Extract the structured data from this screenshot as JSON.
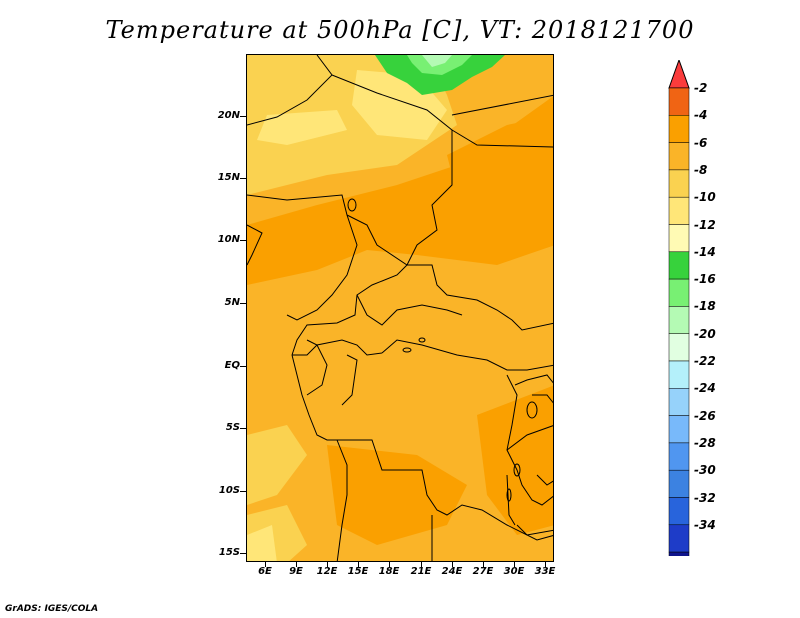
{
  "title": "Temperature at 500hPa [C], VT: 2018121700",
  "credit": "GrADS: IGES/COLA",
  "lat_labels": [
    "20N",
    "15N",
    "10N",
    "5N",
    "EQ",
    "5S",
    "10S",
    "15S"
  ],
  "lon_labels": [
    "6E",
    "9E",
    "12E",
    "15E",
    "18E",
    "21E",
    "24E",
    "27E",
    "30E",
    "33E"
  ],
  "colorbar": {
    "labels": [
      "-2",
      "-4",
      "-6",
      "-8",
      "-10",
      "-12",
      "-14",
      "-16",
      "-18",
      "-20",
      "-22",
      "-24",
      "-26",
      "-28",
      "-30",
      "-32",
      "-34"
    ],
    "colors": [
      "#fa3c3c",
      "#f06414",
      "#faa000",
      "#fab428",
      "#fad250",
      "#ffe678",
      "#fffab4",
      "#37d23c",
      "#78f073",
      "#b4fab4",
      "#e1ffe1",
      "#b4f0fa",
      "#96d2fa",
      "#78b9fa",
      "#5096f0",
      "#3c82e1",
      "#2864dc",
      "#1e3cc8",
      "#0f148c",
      "#e6e6fa"
    ]
  },
  "legend_colors": {
    "dark_orange": "#faa000",
    "orange": "#fab428",
    "light_orange": "#fad250",
    "pale_yellow": "#ffe678",
    "green": "#37d23c",
    "light_green": "#78f073",
    "pale_green": "#b4fab4"
  }
}
